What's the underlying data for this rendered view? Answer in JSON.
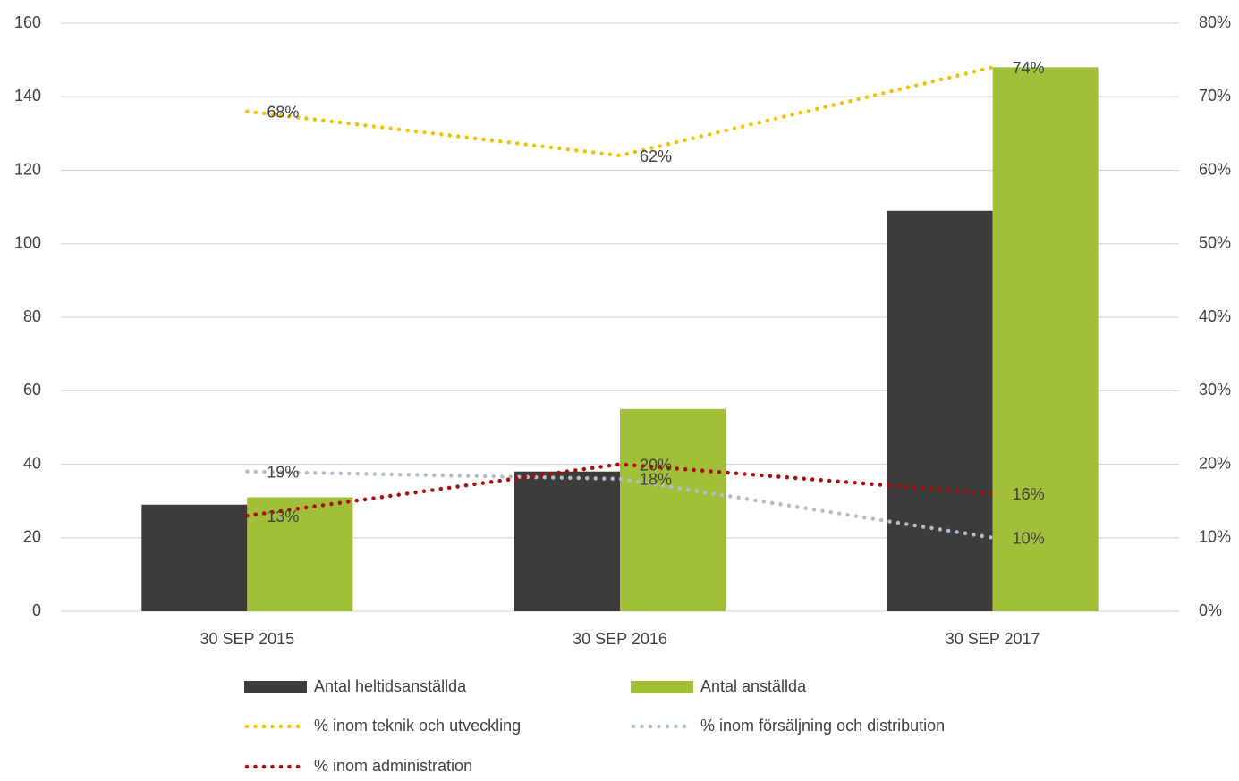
{
  "chart_data": {
    "type": "combo",
    "categories": [
      "30 SEP 2015",
      "30 SEP 2016",
      "30 SEP 2017"
    ],
    "ylim": [
      0,
      160
    ],
    "yticks": [
      0,
      20,
      40,
      60,
      80,
      100,
      120,
      140,
      160
    ],
    "y2lim": [
      0,
      80
    ],
    "y2ticks": [
      {
        "value": 0,
        "label": "0%"
      },
      {
        "value": 10,
        "label": "10%"
      },
      {
        "value": 20,
        "label": "20%"
      },
      {
        "value": 30,
        "label": "30%"
      },
      {
        "value": 40,
        "label": "40%"
      },
      {
        "value": 50,
        "label": "50%"
      },
      {
        "value": 60,
        "label": "60%"
      },
      {
        "value": 70,
        "label": "70%"
      },
      {
        "value": 80,
        "label": "80%"
      }
    ],
    "grid": true,
    "legend": "bottom",
    "series": [
      {
        "name": "Antal heltidsanställda",
        "type": "bar",
        "color": "#3c3c3b",
        "values": [
          29,
          38,
          109
        ]
      },
      {
        "name": "Antal anställda",
        "type": "bar",
        "color": "#a2bf39",
        "values": [
          31,
          55,
          148
        ]
      },
      {
        "name": "% inom teknik och utveckling",
        "type": "line",
        "axis": "y2",
        "color": "#f5c000",
        "values": [
          68,
          62,
          74
        ],
        "value_labels": [
          "68%",
          "62%",
          "74%"
        ]
      },
      {
        "name": "% inom försäljning och distribution",
        "type": "line",
        "axis": "y2",
        "color": "#b3bccb",
        "values": [
          19,
          18,
          10
        ],
        "value_labels": [
          "19%",
          "18%",
          "10%"
        ]
      },
      {
        "name": "% inom administration",
        "type": "line",
        "axis": "y2",
        "color": "#b00a0a",
        "values": [
          13,
          20,
          16
        ],
        "value_labels": [
          "13%",
          "20%",
          "16%"
        ]
      }
    ]
  }
}
